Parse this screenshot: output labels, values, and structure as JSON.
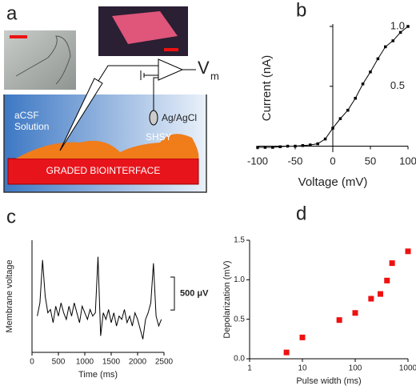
{
  "panel_labels": [
    "a",
    "b",
    "c",
    "d"
  ],
  "diagram": {
    "vm_label": "V",
    "vm_subscript": "m",
    "electrode": "Ag/AgCl",
    "solution_line1": "aCSF",
    "solution_line2": "Solution",
    "cell": "SHSY",
    "substrate": "GRADED BIOINTERFACE"
  },
  "chart_data": [
    {
      "type": "line",
      "xlabel": "Voltage (mV)",
      "ylabel": "Current (nA)",
      "color": "#000000",
      "markers": true,
      "axes_at_zero": true,
      "x": [
        -100,
        -90,
        -80,
        -70,
        -60,
        -50,
        -40,
        -30,
        -20,
        -10,
        0,
        10,
        20,
        30,
        40,
        50,
        60,
        70,
        80,
        90,
        100
      ],
      "values": [
        -0.01,
        -0.01,
        -0.01,
        -0.005,
        0,
        0,
        0.005,
        0.01,
        0.02,
        0.06,
        0.15,
        0.23,
        0.3,
        0.4,
        0.52,
        0.62,
        0.73,
        0.83,
        0.88,
        0.95,
        1.0
      ],
      "xlim": [
        -100,
        100
      ],
      "xticks": [
        -100,
        -50,
        0,
        50,
        100
      ],
      "ylim": [
        -0.05,
        1.02
      ],
      "yticks": [
        0.5,
        {
          "value": 1,
          "label": "1.0"
        }
      ]
    },
    {
      "type": "line",
      "xlabel": "Time (ms)",
      "ylabel": "Membrane voltage",
      "color": "#000000",
      "markers": false,
      "axes_at_zero": false,
      "x": [
        100,
        150,
        200,
        250,
        300,
        350,
        400,
        450,
        500,
        550,
        600,
        650,
        700,
        750,
        800,
        850,
        900,
        950,
        1000,
        1050,
        1100,
        1150,
        1200,
        1250,
        1300,
        1350,
        1400,
        1450,
        1500,
        1550,
        1600,
        1650,
        1700,
        1750,
        1800,
        1850,
        1900,
        1950,
        2000,
        2050,
        2100,
        2150,
        2200,
        2250,
        2300,
        2350,
        2400,
        2450
      ],
      "values": [
        -150,
        50,
        700,
        150,
        -100,
        -50,
        -250,
        0,
        -150,
        50,
        -100,
        -200,
        0,
        -150,
        50,
        -100,
        -250,
        0,
        -100,
        -200,
        -50,
        -150,
        -100,
        750,
        -450,
        -100,
        -200,
        -50,
        -250,
        -100,
        -300,
        -150,
        -200,
        -50,
        -250,
        -150,
        -300,
        -100,
        -200,
        -350,
        -500,
        -200,
        -100,
        50,
        650,
        -150,
        -300,
        -200
      ],
      "xlim": [
        0,
        2500
      ],
      "xticks": [
        0,
        500,
        1000,
        1500,
        2000,
        2500
      ],
      "ylim": [
        -700,
        1000
      ],
      "yticks": [],
      "scale_bar": {
        "value": 500,
        "label": "500 μV"
      }
    },
    {
      "type": "scatter",
      "xlabel": "Pulse width (ms)",
      "ylabel": "Depolarization (mV)",
      "color": "#ee1111",
      "xscale": "log",
      "axes_at_zero": false,
      "x": [
        5,
        10,
        50,
        100,
        200,
        300,
        400,
        500,
        1000
      ],
      "values": [
        0.08,
        0.27,
        0.49,
        0.58,
        0.76,
        0.82,
        0.99,
        1.21,
        1.36
      ],
      "xlim": [
        1,
        1000
      ],
      "xticks": [
        1,
        10,
        100,
        1000
      ],
      "ylim": [
        0,
        1.5
      ],
      "yticks": [
        {
          "value": 0,
          "label": "0.0"
        },
        0.5,
        {
          "value": 1,
          "label": "1.0"
        },
        1.5
      ]
    }
  ]
}
